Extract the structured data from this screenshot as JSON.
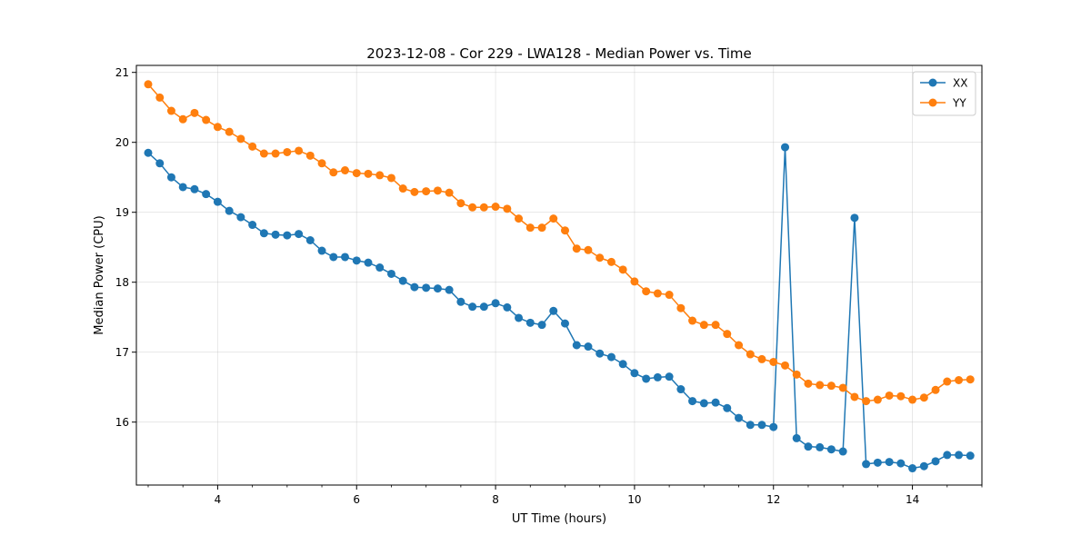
{
  "chart_data": {
    "type": "line",
    "title": "2023-12-08 - Cor 229 - LWA128 - Median Power vs. Time",
    "xlabel": "UT Time (hours)",
    "ylabel": "Median Power (CPU)",
    "xlim": [
      2.83,
      15.0
    ],
    "ylim": [
      15.1,
      21.1
    ],
    "xticks": [
      4,
      6,
      8,
      10,
      12,
      14
    ],
    "yticks": [
      16,
      17,
      18,
      19,
      20,
      21
    ],
    "grid": true,
    "legend_position": "top-right",
    "marker": "circle",
    "x": [
      3.0,
      3.167,
      3.333,
      3.5,
      3.667,
      3.833,
      4.0,
      4.167,
      4.333,
      4.5,
      4.667,
      4.833,
      5.0,
      5.167,
      5.333,
      5.5,
      5.667,
      5.833,
      6.0,
      6.167,
      6.333,
      6.5,
      6.667,
      6.833,
      7.0,
      7.167,
      7.333,
      7.5,
      7.667,
      7.833,
      8.0,
      8.167,
      8.333,
      8.5,
      8.667,
      8.833,
      9.0,
      9.167,
      9.333,
      9.5,
      9.667,
      9.833,
      10.0,
      10.167,
      10.333,
      10.5,
      10.667,
      10.833,
      11.0,
      11.167,
      11.333,
      11.5,
      11.667,
      11.833,
      12.0,
      12.167,
      12.333,
      12.5,
      12.667,
      12.833,
      13.0,
      13.167,
      13.333,
      13.5,
      13.667,
      13.833,
      14.0,
      14.167,
      14.333,
      14.5,
      14.667,
      14.833
    ],
    "series": [
      {
        "name": "XX",
        "color": "#1f77b4",
        "values": [
          19.85,
          19.7,
          19.5,
          19.36,
          19.33,
          19.26,
          19.15,
          19.02,
          18.93,
          18.82,
          18.7,
          18.68,
          18.67,
          18.69,
          18.6,
          18.45,
          18.36,
          18.36,
          18.31,
          18.28,
          18.21,
          18.12,
          18.02,
          17.93,
          17.92,
          17.91,
          17.89,
          17.72,
          17.65,
          17.65,
          17.7,
          17.64,
          17.49,
          17.42,
          17.39,
          17.59,
          17.41,
          17.1,
          17.08,
          16.98,
          16.93,
          16.83,
          16.7,
          16.62,
          16.64,
          16.65,
          16.47,
          16.3,
          16.27,
          16.28,
          16.2,
          16.06,
          15.96,
          15.96,
          15.93,
          19.93,
          15.77,
          15.65,
          15.64,
          15.61,
          15.58,
          18.92,
          15.4,
          15.42,
          15.43,
          15.41,
          15.34,
          15.37,
          15.44,
          15.53,
          15.53,
          15.52
        ]
      },
      {
        "name": "YY",
        "color": "#ff7f0e",
        "values": [
          20.83,
          20.64,
          20.45,
          20.33,
          20.42,
          20.32,
          20.22,
          20.15,
          20.05,
          19.94,
          19.84,
          19.84,
          19.86,
          19.88,
          19.81,
          19.7,
          19.57,
          19.6,
          19.56,
          19.55,
          19.53,
          19.49,
          19.34,
          19.29,
          19.3,
          19.31,
          19.28,
          19.13,
          19.07,
          19.07,
          19.08,
          19.05,
          18.91,
          18.78,
          18.78,
          18.91,
          18.74,
          18.48,
          18.46,
          18.35,
          18.29,
          18.18,
          18.01,
          17.87,
          17.84,
          17.82,
          17.63,
          17.45,
          17.39,
          17.39,
          17.26,
          17.1,
          16.97,
          16.9,
          16.86,
          16.81,
          16.68,
          16.55,
          16.53,
          16.52,
          16.49,
          16.36,
          16.3,
          16.32,
          16.38,
          16.37,
          16.32,
          16.35,
          16.46,
          16.58,
          16.6,
          16.61
        ]
      }
    ]
  }
}
